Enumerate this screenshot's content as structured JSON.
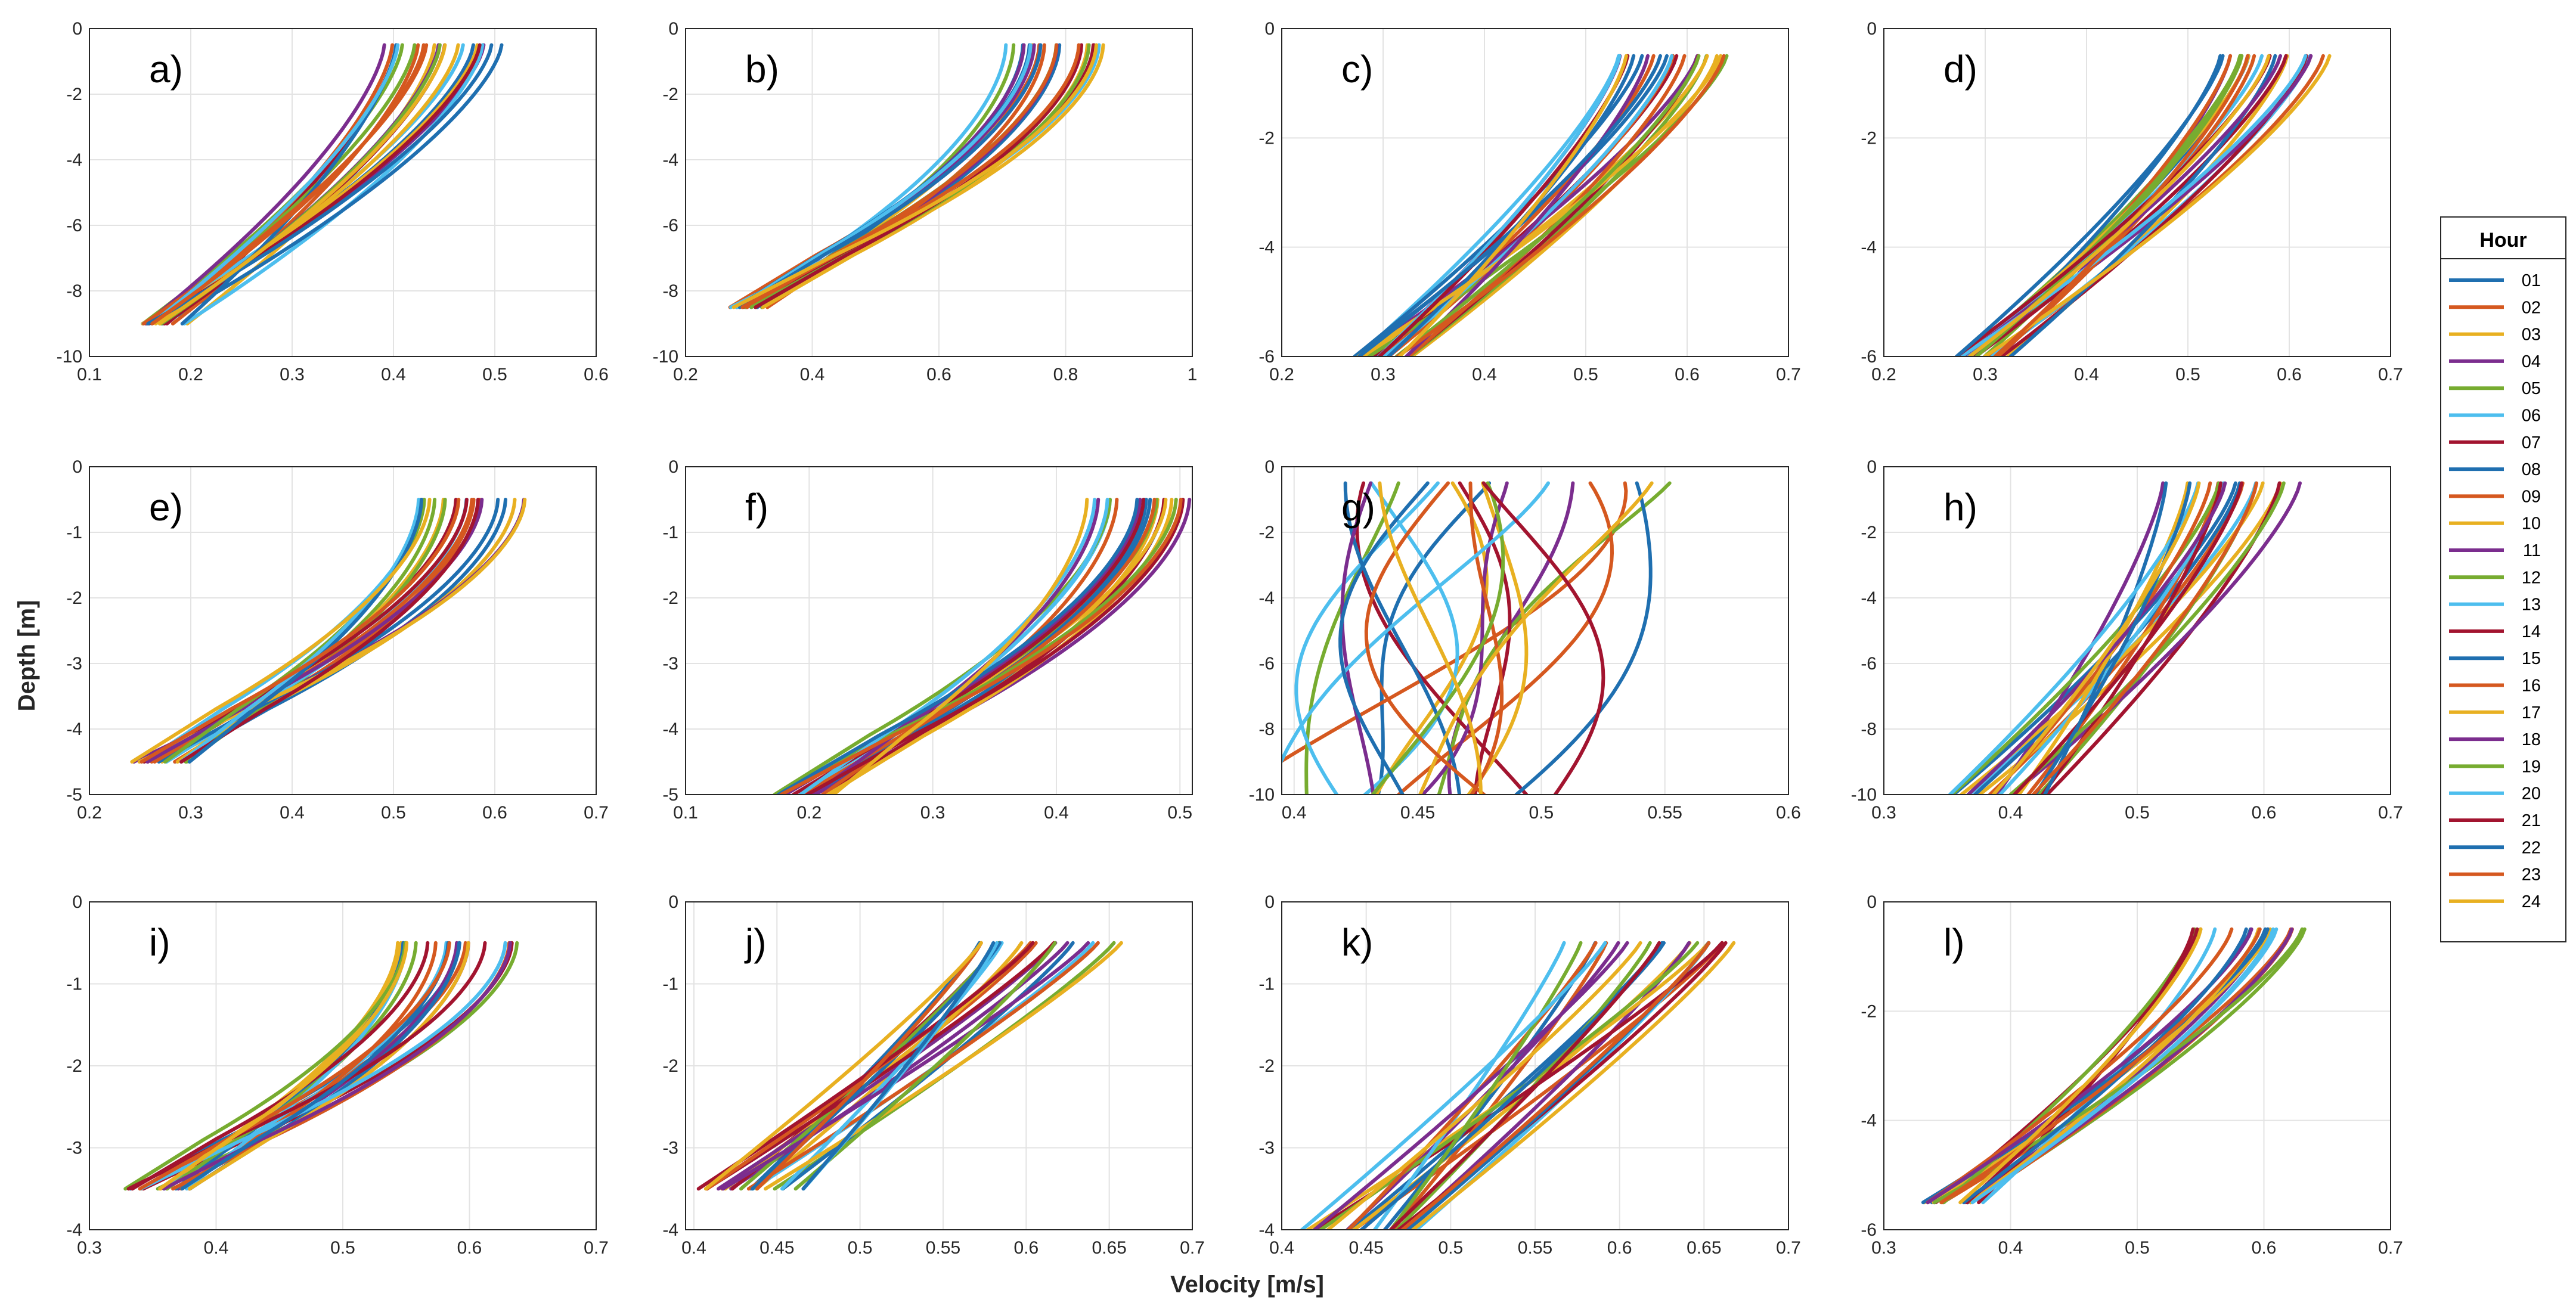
{
  "chart_data": {
    "type": "line",
    "title": "",
    "xlabel": "Velocity [m/s]",
    "ylabel": "Depth [m]",
    "legend": {
      "title": "Hour",
      "placement": "right",
      "entries": [
        "01",
        "02",
        "03",
        "04",
        "05",
        "06",
        "07",
        "08",
        "09",
        "10",
        "11",
        "12",
        "13",
        "14",
        "15",
        "16",
        "17",
        "18",
        "19",
        "20",
        "21",
        "22",
        "23",
        "24"
      ]
    },
    "series_colors": [
      "#1f6fb0",
      "#d5581f",
      "#e8b021",
      "#7b2d8e",
      "#77ac30",
      "#4dbeee",
      "#a2142f",
      "#1f6fb0",
      "#d5581f",
      "#e8b021",
      "#7b2d8e",
      "#77ac30",
      "#4dbeee",
      "#a2142f",
      "#1f6fb0",
      "#d5581f",
      "#e8b021",
      "#7b2d8e",
      "#77ac30",
      "#4dbeee",
      "#a2142f",
      "#1f6fb0",
      "#d5581f",
      "#e8b021"
    ],
    "panels": [
      {
        "label": "a)",
        "xlim": [
          0.1,
          0.6
        ],
        "ylim": [
          -10,
          0
        ],
        "xticks": [
          "0.1",
          "0.2",
          "0.3",
          "0.4",
          "0.5",
          "0.6"
        ],
        "yticks": [
          "0",
          "-2",
          "-4",
          "-6",
          "-8",
          "-10"
        ],
        "shape": "s",
        "top": -0.5,
        "bottom": -9,
        "surface_range": [
          0.39,
          0.51
        ],
        "bottom_range": [
          0.15,
          0.2
        ]
      },
      {
        "label": "b)",
        "xlim": [
          0.2,
          1.0
        ],
        "ylim": [
          -10,
          0
        ],
        "xticks": [
          "0.2",
          "0.4",
          "0.6",
          "0.8",
          "1"
        ],
        "yticks": [
          "0",
          "-2",
          "-4",
          "-6",
          "-8",
          "-10"
        ],
        "shape": "b",
        "top": -0.5,
        "bottom": -8.5,
        "surface_range": [
          0.7,
          0.86
        ],
        "bottom_range": [
          0.27,
          0.33
        ]
      },
      {
        "label": "c)",
        "xlim": [
          0.2,
          0.7
        ],
        "ylim": [
          -6,
          0
        ],
        "xticks": [
          "0.2",
          "0.3",
          "0.4",
          "0.5",
          "0.6",
          "0.7"
        ],
        "yticks": [
          "0",
          "-2",
          "-4",
          "-6"
        ],
        "shape": "c",
        "top": -0.5,
        "bottom": -6,
        "surface_range": [
          0.53,
          0.64
        ],
        "bottom_range": [
          0.27,
          0.33
        ]
      },
      {
        "label": "d)",
        "xlim": [
          0.2,
          0.7
        ],
        "ylim": [
          -6,
          0
        ],
        "xticks": [
          "0.2",
          "0.3",
          "0.4",
          "0.5",
          "0.6",
          "0.7"
        ],
        "yticks": [
          "0",
          "-2",
          "-4",
          "-6"
        ],
        "shape": "c",
        "top": -0.5,
        "bottom": -6,
        "surface_range": [
          0.53,
          0.64
        ],
        "bottom_range": [
          0.27,
          0.33
        ]
      },
      {
        "label": "e)",
        "xlim": [
          0.2,
          0.7
        ],
        "ylim": [
          -5,
          0
        ],
        "xticks": [
          "0.2",
          "0.3",
          "0.4",
          "0.5",
          "0.6",
          "0.7"
        ],
        "yticks": [
          "0",
          "-1",
          "-2",
          "-3",
          "-4",
          "-5"
        ],
        "shape": "b",
        "top": -0.5,
        "bottom": -4.5,
        "surface_range": [
          0.52,
          0.63
        ],
        "bottom_range": [
          0.24,
          0.3
        ]
      },
      {
        "label": "f)",
        "xlim": [
          0.1,
          0.51
        ],
        "ylim": [
          -5,
          0
        ],
        "xticks": [
          "0.1",
          "0.2",
          "0.3",
          "0.4",
          "0.5"
        ],
        "yticks": [
          "0",
          "-1",
          "-2",
          "-3",
          "-4",
          "-5"
        ],
        "shape": "b",
        "top": -0.5,
        "bottom": -5,
        "surface_range": [
          0.42,
          0.51
        ],
        "bottom_range": [
          0.17,
          0.22
        ]
      },
      {
        "label": "g)",
        "xlim": [
          0.395,
          0.6
        ],
        "ylim": [
          -10,
          0
        ],
        "xticks": [
          "0.4",
          "0.45",
          "0.5",
          "0.55",
          "0.6"
        ],
        "yticks": [
          "0",
          "-2",
          "-4",
          "-6",
          "-8",
          "-10"
        ],
        "shape": "g",
        "top": -0.5,
        "bottom": -10,
        "surface_range": [
          0.43,
          0.565
        ],
        "bottom_range": [
          0.4,
          0.5
        ]
      },
      {
        "label": "h)",
        "xlim": [
          0.3,
          0.7
        ],
        "ylim": [
          -10,
          0
        ],
        "xticks": [
          "0.3",
          "0.4",
          "0.5",
          "0.6",
          "0.7"
        ],
        "yticks": [
          "0",
          "-2",
          "-4",
          "-6",
          "-8",
          "-10"
        ],
        "shape": "c",
        "top": -0.5,
        "bottom": -10,
        "surface_range": [
          0.52,
          0.63
        ],
        "bottom_range": [
          0.35,
          0.43
        ]
      },
      {
        "label": "i)",
        "xlim": [
          0.3,
          0.7
        ],
        "ylim": [
          -4,
          0
        ],
        "xticks": [
          "0.3",
          "0.4",
          "0.5",
          "0.6",
          "0.7"
        ],
        "yticks": [
          "0",
          "-1",
          "-2",
          "-3",
          "-4"
        ],
        "shape": "b",
        "top": -0.5,
        "bottom": -3.5,
        "surface_range": [
          0.54,
          0.64
        ],
        "bottom_range": [
          0.32,
          0.38
        ]
      },
      {
        "label": "j)",
        "xlim": [
          0.395,
          0.7
        ],
        "ylim": [
          -4,
          0
        ],
        "xticks": [
          "0.4",
          "0.45",
          "0.5",
          "0.55",
          "0.6",
          "0.65",
          "0.7"
        ],
        "yticks": [
          "0",
          "-1",
          "-2",
          "-3",
          "-4"
        ],
        "shape": "l",
        "top": -0.5,
        "bottom": -3.5,
        "surface_range": [
          0.57,
          0.665
        ],
        "bottom_range": [
          0.4,
          0.47
        ]
      },
      {
        "label": "k)",
        "xlim": [
          0.4,
          0.7
        ],
        "ylim": [
          -4,
          0
        ],
        "xticks": [
          "0.4",
          "0.45",
          "0.5",
          "0.55",
          "0.6",
          "0.65",
          "0.7"
        ],
        "yticks": [
          "0",
          "-1",
          "-2",
          "-3",
          "-4"
        ],
        "shape": "l",
        "top": -0.5,
        "bottom": -4,
        "surface_range": [
          0.56,
          0.67
        ],
        "bottom_range": [
          0.41,
          0.48
        ]
      },
      {
        "label": "l)",
        "xlim": [
          0.3,
          0.7
        ],
        "ylim": [
          -6,
          0
        ],
        "xticks": [
          "0.3",
          "0.4",
          "0.5",
          "0.6",
          "0.7"
        ],
        "yticks": [
          "0",
          "-2",
          "-4",
          "-6"
        ],
        "shape": "c",
        "top": -0.5,
        "bottom": -5.5,
        "surface_range": [
          0.54,
          0.64
        ],
        "bottom_range": [
          0.33,
          0.38
        ]
      }
    ]
  }
}
